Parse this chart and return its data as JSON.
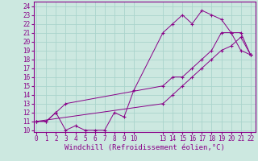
{
  "xlabel": "Windchill (Refroidissement éolien,°C)",
  "bg_color": "#cce8e0",
  "line_color": "#880088",
  "grid_color": "#aad4cc",
  "line1_x": [
    0,
    1,
    2,
    3,
    4,
    5,
    6,
    7,
    8,
    9,
    10,
    13,
    14,
    15,
    16,
    17,
    18,
    19,
    20,
    21,
    22
  ],
  "line1_y": [
    11,
    11,
    12,
    10,
    10.5,
    10,
    10,
    10,
    12,
    11.5,
    14.5,
    21,
    22,
    23,
    22,
    23.5,
    23,
    22.5,
    21,
    19,
    18.5
  ],
  "line2_x": [
    0,
    1,
    2,
    3,
    13,
    14,
    15,
    16,
    17,
    18,
    19,
    20,
    21,
    22
  ],
  "line2_y": [
    11,
    11,
    12,
    13,
    15,
    16,
    16,
    17,
    18,
    19,
    21,
    21,
    21,
    18.5
  ],
  "line3_x": [
    0,
    13,
    14,
    15,
    16,
    17,
    18,
    19,
    20,
    21,
    22
  ],
  "line3_y": [
    11,
    13,
    14,
    15,
    16,
    17,
    18,
    19,
    19.5,
    20.5,
    18.5
  ],
  "xlim": [
    -0.3,
    22.5
  ],
  "ylim": [
    9.8,
    24.5
  ],
  "xticks": [
    0,
    1,
    2,
    3,
    4,
    5,
    6,
    7,
    8,
    9,
    10,
    13,
    14,
    15,
    16,
    17,
    18,
    19,
    20,
    21,
    22
  ],
  "yticks": [
    10,
    11,
    12,
    13,
    14,
    15,
    16,
    17,
    18,
    19,
    20,
    21,
    22,
    23,
    24
  ],
  "tick_fontsize": 5.5,
  "xlabel_fontsize": 6.5,
  "marker": "+"
}
